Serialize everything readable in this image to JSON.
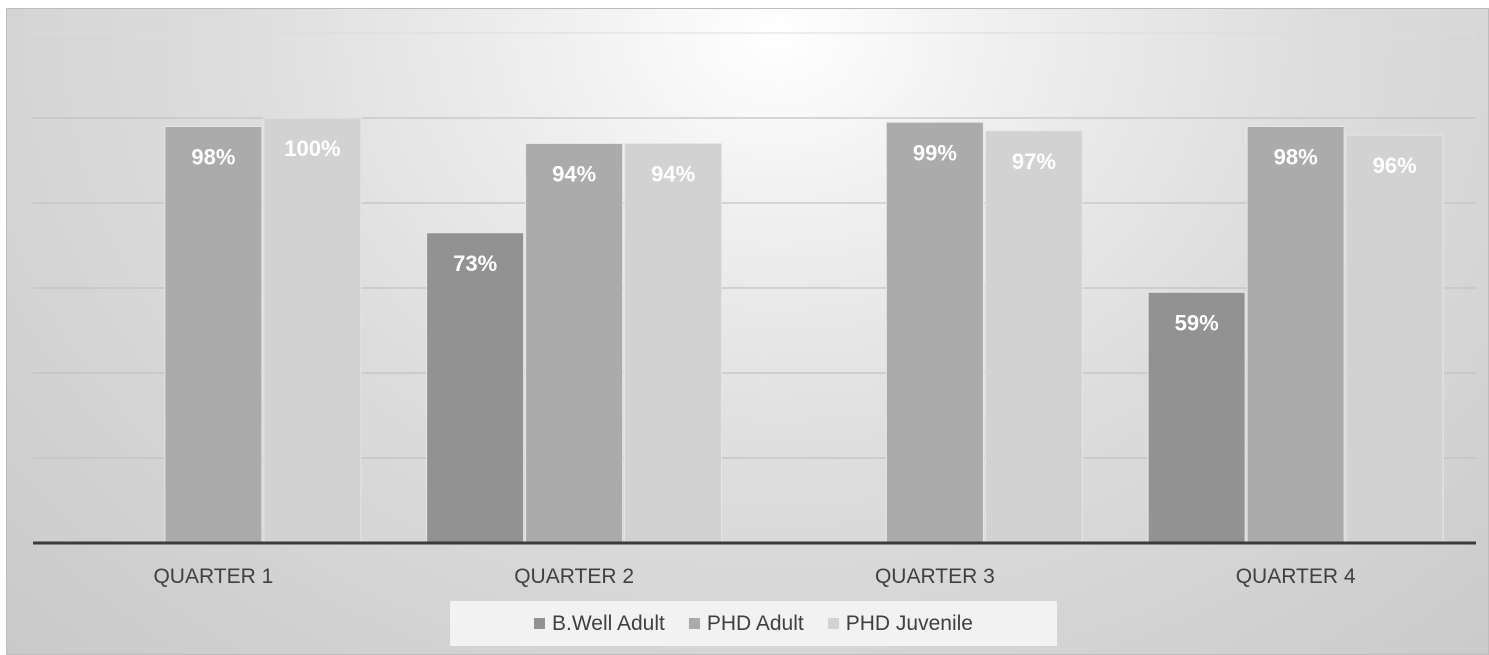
{
  "colors": {
    "series": [
      "#929292",
      "#ababab",
      "#d2d2d2"
    ],
    "label": "#ffffff",
    "axis": "#3b3b3b"
  },
  "chart_data": {
    "type": "bar",
    "categories": [
      "QUARTER 1",
      "QUARTER 2",
      "QUARTER 3",
      "QUARTER 4"
    ],
    "series": [
      {
        "name": "B.Well Adult",
        "values": [
          null,
          73,
          null,
          59
        ],
        "labels": [
          "",
          "73%",
          "",
          "59%"
        ]
      },
      {
        "name": "PHD Adult",
        "values": [
          98,
          94,
          99,
          98
        ],
        "labels": [
          "98%",
          "94%",
          "99%",
          "98%"
        ]
      },
      {
        "name": "PHD Juvenile",
        "values": [
          100,
          94,
          97,
          96
        ],
        "labels": [
          "100%",
          "94%",
          "97%",
          "96%"
        ]
      }
    ],
    "ylim": [
      0,
      100
    ],
    "grid": true,
    "legend": "bottom"
  }
}
